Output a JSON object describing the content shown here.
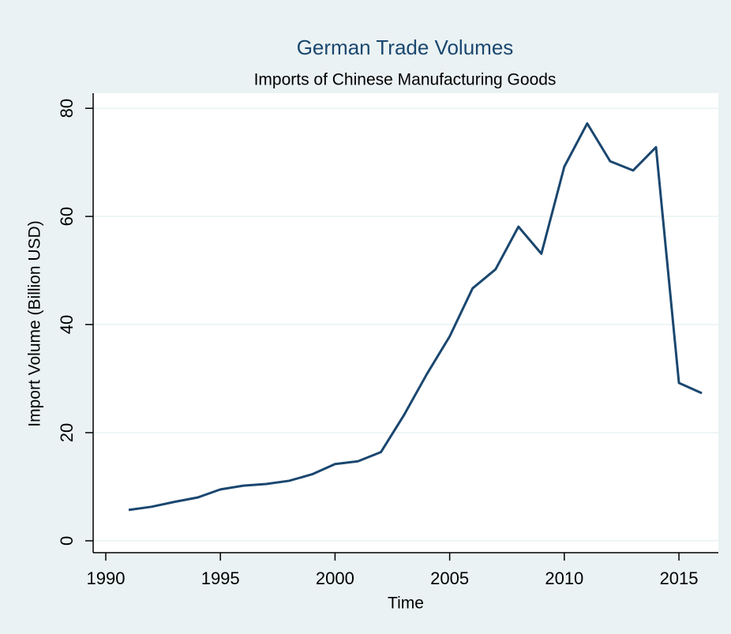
{
  "chart_data": {
    "type": "line",
    "title": "German Trade Volumes",
    "subtitle": "Imports of Chinese Manufacturing Goods",
    "xlabel": "Time",
    "ylabel": "Import Volume (Billion USD)",
    "x": [
      1991,
      1992,
      1993,
      1994,
      1995,
      1996,
      1997,
      1998,
      1999,
      2000,
      2001,
      2002,
      2003,
      2004,
      2005,
      2006,
      2007,
      2008,
      2009,
      2010,
      2011,
      2012,
      2013,
      2014,
      2015,
      2016
    ],
    "series": [
      {
        "name": "Import Volume",
        "color": "#1a476f",
        "values": [
          5.7,
          6.3,
          7.2,
          8.0,
          9.5,
          10.2,
          10.5,
          11.1,
          12.3,
          14.2,
          14.7,
          16.4,
          23.2,
          30.8,
          37.8,
          46.7,
          50.2,
          58.1,
          53.1,
          69.2,
          77.2,
          70.2,
          68.5,
          72.8,
          29.2,
          27.3
        ]
      }
    ],
    "xlim": [
      1989.45,
      2016.72
    ],
    "ylim": [
      -2.2,
      82.8
    ],
    "xticks": [
      1990,
      1995,
      2000,
      2005,
      2010,
      2015
    ],
    "yticks": [
      0,
      20,
      40,
      60,
      80
    ],
    "grid": true
  }
}
